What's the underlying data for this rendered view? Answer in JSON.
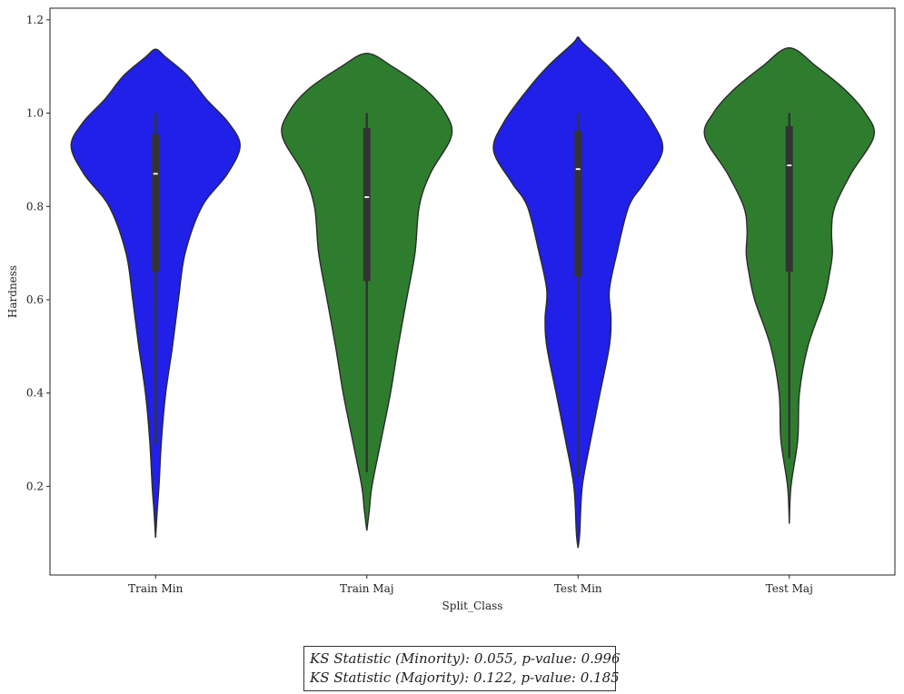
{
  "chart_data": {
    "type": "violin",
    "xlabel": "Split_Class",
    "ylabel": "Hardness",
    "categories": [
      "Train Min",
      "Train Maj",
      "Test Min",
      "Test Maj"
    ],
    "colors": [
      "#2020e8",
      "#2e7d2e",
      "#2020e8",
      "#2e7d2e"
    ],
    "ylim": [
      0.01,
      1.225
    ],
    "yticks": [
      0.2,
      0.4,
      0.6,
      0.8,
      1.0,
      1.2
    ],
    "ytick_labels": [
      "0.2",
      "0.4",
      "0.6",
      "0.8",
      "1.0",
      "1.2"
    ],
    "violins": [
      {
        "name": "Train Min",
        "min": 0.09,
        "max": 1.137,
        "q1": 0.66,
        "median": 0.87,
        "q3": 0.955,
        "whisker_low": 0.29,
        "whisker_high": 1.0,
        "profile": [
          [
            0.09,
            0.0
          ],
          [
            0.15,
            0.02
          ],
          [
            0.2,
            0.04
          ],
          [
            0.3,
            0.07
          ],
          [
            0.4,
            0.12
          ],
          [
            0.5,
            0.2
          ],
          [
            0.6,
            0.27
          ],
          [
            0.7,
            0.35
          ],
          [
            0.8,
            0.55
          ],
          [
            0.87,
            0.85
          ],
          [
            0.93,
            1.0
          ],
          [
            0.98,
            0.86
          ],
          [
            1.03,
            0.6
          ],
          [
            1.08,
            0.38
          ],
          [
            1.12,
            0.12
          ],
          [
            1.137,
            0.0
          ]
        ]
      },
      {
        "name": "Train Maj",
        "min": 0.105,
        "max": 1.128,
        "q1": 0.64,
        "median": 0.82,
        "q3": 0.968,
        "whisker_low": 0.23,
        "whisker_high": 1.0,
        "profile": [
          [
            0.105,
            0.0
          ],
          [
            0.15,
            0.03
          ],
          [
            0.2,
            0.06
          ],
          [
            0.3,
            0.17
          ],
          [
            0.4,
            0.28
          ],
          [
            0.5,
            0.37
          ],
          [
            0.6,
            0.47
          ],
          [
            0.7,
            0.57
          ],
          [
            0.8,
            0.62
          ],
          [
            0.87,
            0.75
          ],
          [
            0.95,
            1.0
          ],
          [
            1.0,
            0.93
          ],
          [
            1.05,
            0.7
          ],
          [
            1.1,
            0.3
          ],
          [
            1.128,
            0.0
          ]
        ]
      },
      {
        "name": "Test Min",
        "min": 0.068,
        "max": 1.163,
        "q1": 0.65,
        "median": 0.88,
        "q3": 0.962,
        "whisker_low": 0.22,
        "whisker_high": 1.0,
        "profile": [
          [
            0.068,
            0.0
          ],
          [
            0.1,
            0.02
          ],
          [
            0.2,
            0.05
          ],
          [
            0.3,
            0.15
          ],
          [
            0.4,
            0.26
          ],
          [
            0.5,
            0.37
          ],
          [
            0.56,
            0.39
          ],
          [
            0.62,
            0.37
          ],
          [
            0.7,
            0.46
          ],
          [
            0.8,
            0.6
          ],
          [
            0.85,
            0.78
          ],
          [
            0.92,
            1.0
          ],
          [
            0.98,
            0.88
          ],
          [
            1.05,
            0.6
          ],
          [
            1.1,
            0.36
          ],
          [
            1.15,
            0.06
          ],
          [
            1.163,
            0.0
          ]
        ]
      },
      {
        "name": "Test Maj",
        "min": 0.12,
        "max": 1.14,
        "q1": 0.66,
        "median": 0.888,
        "q3": 0.972,
        "whisker_low": 0.26,
        "whisker_high": 1.0,
        "profile": [
          [
            0.12,
            0.0
          ],
          [
            0.2,
            0.02
          ],
          [
            0.3,
            0.1
          ],
          [
            0.4,
            0.12
          ],
          [
            0.5,
            0.22
          ],
          [
            0.6,
            0.41
          ],
          [
            0.66,
            0.48
          ],
          [
            0.7,
            0.51
          ],
          [
            0.75,
            0.5
          ],
          [
            0.8,
            0.54
          ],
          [
            0.87,
            0.73
          ],
          [
            0.95,
            1.0
          ],
          [
            1.0,
            0.9
          ],
          [
            1.05,
            0.66
          ],
          [
            1.1,
            0.32
          ],
          [
            1.14,
            0.0
          ]
        ]
      }
    ]
  },
  "annotation": {
    "line1": "KS Statistic (Minority): 0.055, p-value: 0.996",
    "line2": "KS Statistic (Majority): 0.122, p-value: 0.185"
  }
}
